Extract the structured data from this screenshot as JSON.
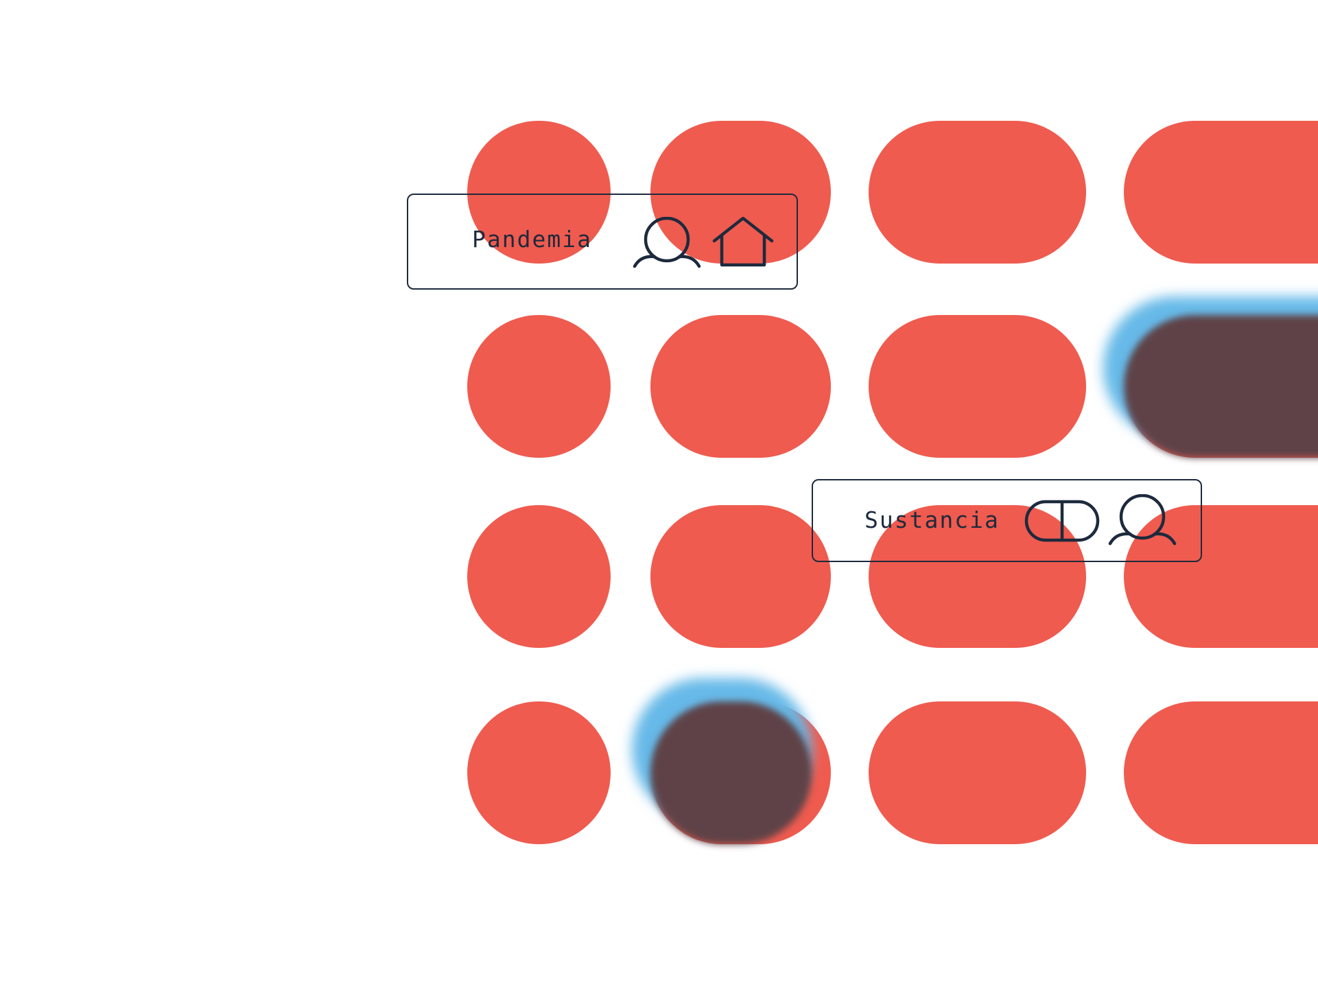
{
  "palette": {
    "background": "#ffffff",
    "shape": "#ef5b4f",
    "highlight_dark": "#5e4247",
    "highlight_glow": "#66b9e8",
    "ink": "#1d2a3d"
  },
  "labels": [
    {
      "text": "Pandemia",
      "icons": [
        "user-icon",
        "home-icon"
      ]
    },
    {
      "text": "Sustancia",
      "icons": [
        "pill-icon",
        "user-icon"
      ]
    }
  ]
}
